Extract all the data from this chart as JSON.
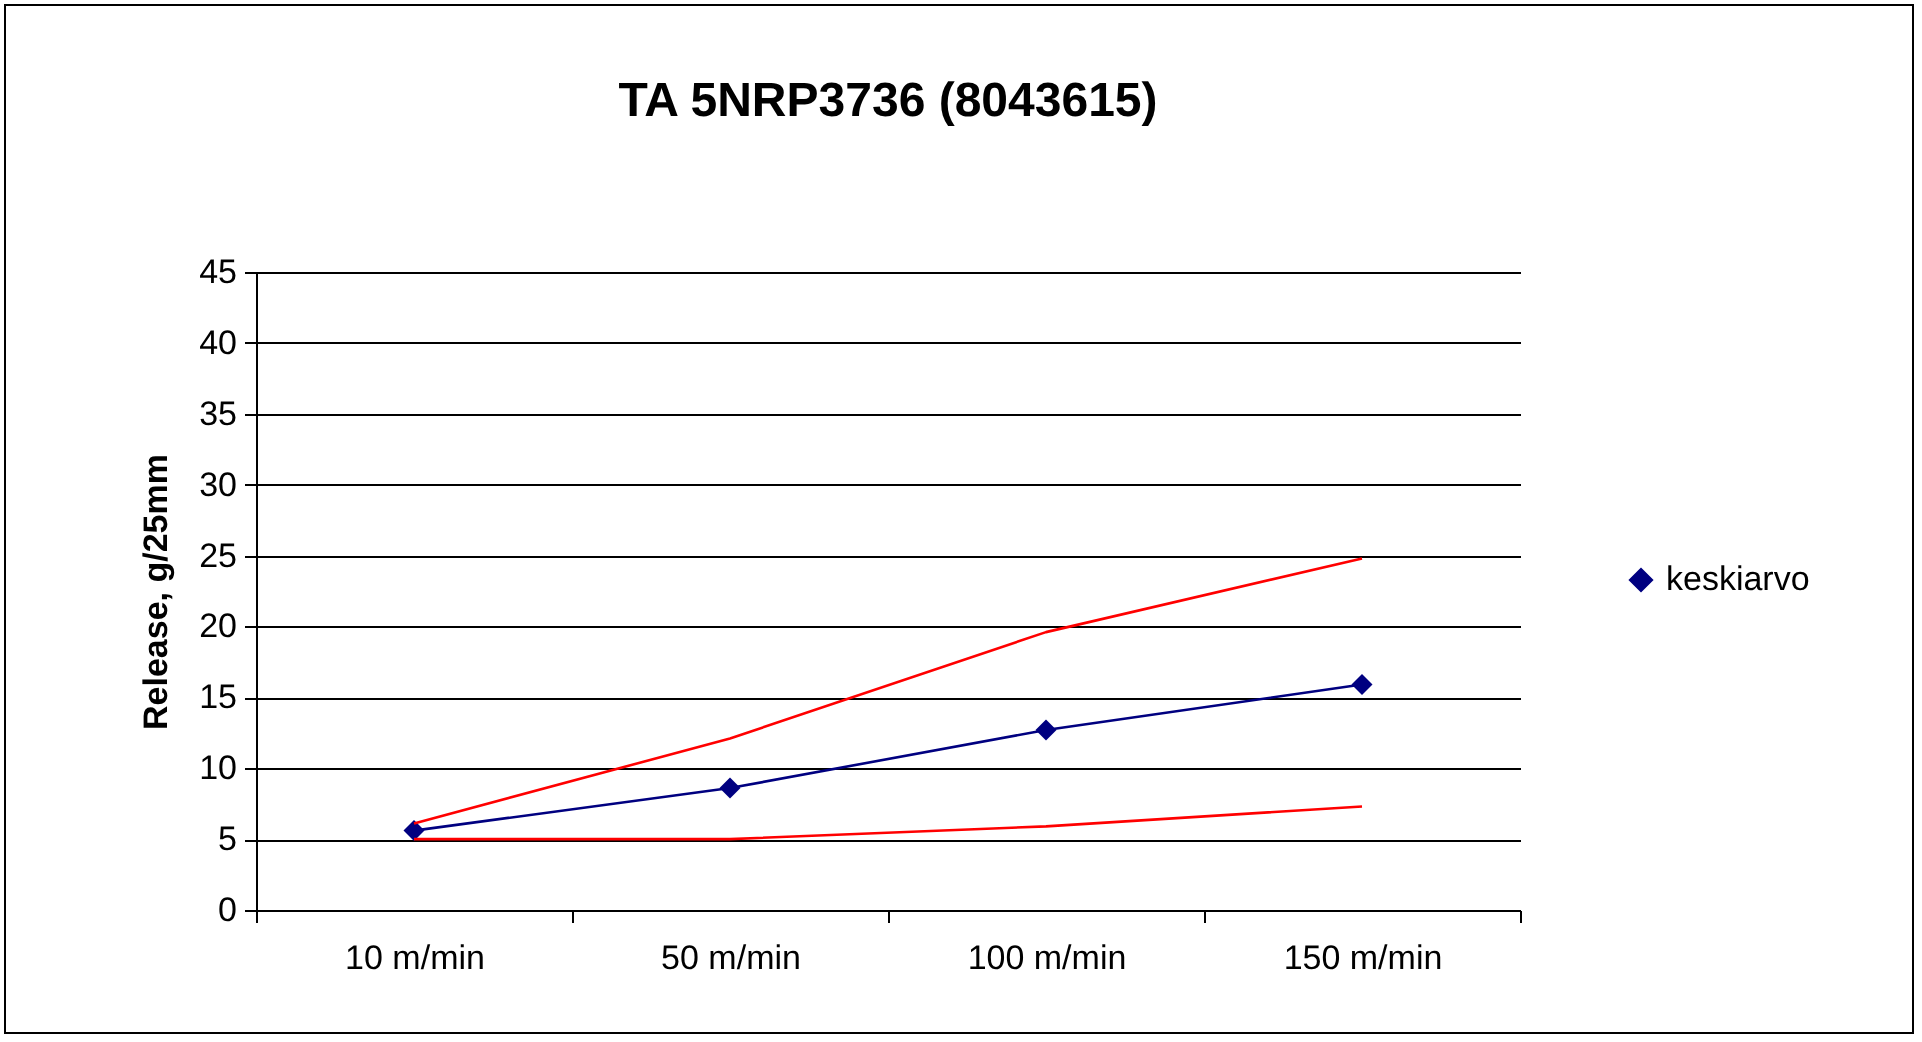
{
  "chart_data": {
    "type": "line",
    "title": "TA 5NRP3736 (8043615)",
    "ylabel": "Release, g/25mm",
    "categories": [
      "10 m/min",
      "50 m/min",
      "100 m/min",
      "150 m/min"
    ],
    "series": [
      {
        "name": "keskiarvo",
        "color": "#000080",
        "marker": "diamond",
        "values": [
          5.6,
          8.6,
          12.7,
          15.9
        ]
      },
      {
        "color": "#ff0000",
        "marker": "none",
        "values": [
          6.1,
          12.1,
          19.6,
          24.8
        ]
      },
      {
        "color": "#ff0000",
        "marker": "none",
        "values": [
          5,
          5,
          5.9,
          7.3
        ]
      }
    ],
    "ylim": [
      0,
      45
    ],
    "yticks": [
      0,
      5,
      10,
      15,
      20,
      25,
      30,
      35,
      40,
      45
    ],
    "grid": "y",
    "legend": "right",
    "line_style": "solid"
  }
}
